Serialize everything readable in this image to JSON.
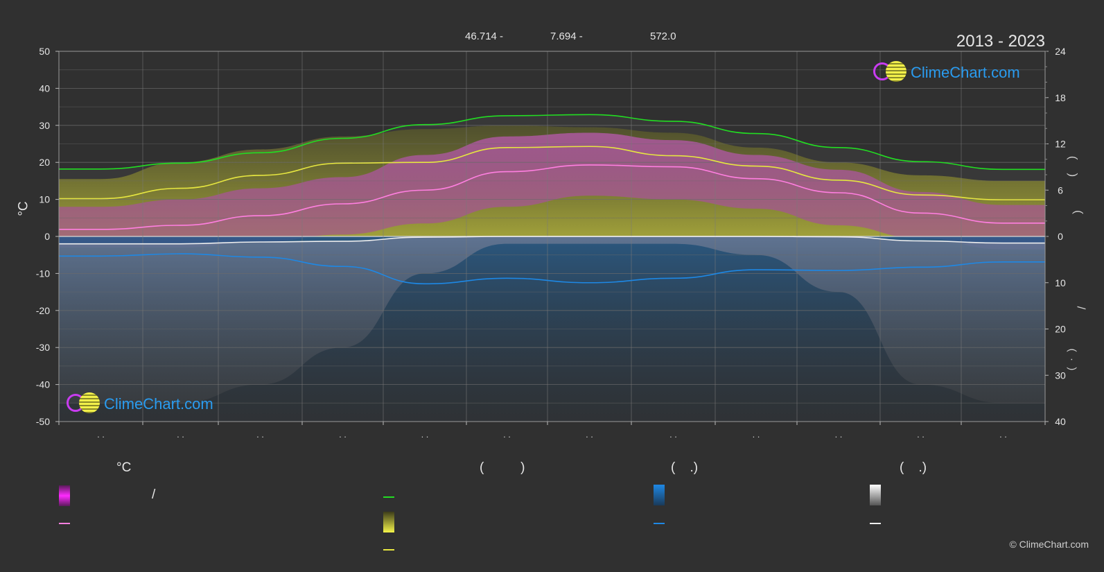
{
  "header": {
    "title": "2013 - 2023",
    "coords": [
      "46.714 -",
      "7.694 -",
      "572.0"
    ]
  },
  "logos": {
    "text": "ClimeChart.com"
  },
  "copyright": "© ClimeChart.com",
  "legend": {
    "temp_heading": "°C",
    "sun_heading": "(          )",
    "rain_heading": "(    .)",
    "snow_heading": "(    .)",
    "slash_label": "/"
  },
  "colors": {
    "background": "#303030",
    "daylight_line": "#22dd22",
    "sunshine_line": "#e6e640",
    "max_temp_line": "#ff7fe0",
    "rain_line": "#1e88e5",
    "snow_line": "#eeeeee"
  },
  "chart_data": {
    "type": "area",
    "months": 12,
    "x_tick_labels": [
      ". .",
      ". .",
      ". .",
      ". .",
      ". .",
      ". .",
      ". .",
      ". .",
      ". .",
      ". .",
      ". .",
      ". ."
    ],
    "y_left": {
      "label": "°C",
      "ticks": [
        50,
        40,
        30,
        20,
        10,
        0,
        -10,
        -20,
        -30,
        -40,
        -50
      ],
      "range": [
        -50,
        50
      ]
    },
    "y_right_top": {
      "ticks": [
        24,
        18,
        12,
        6,
        0
      ],
      "range": [
        0,
        24
      ]
    },
    "y_right_bottom": {
      "ticks": [
        0,
        10,
        20,
        30,
        40
      ],
      "range": [
        0,
        40
      ]
    },
    "right_label_glyphs": [
      "(    )",
      "(",
      "/",
      "(  ·  )"
    ],
    "series": [
      {
        "key": "daylight",
        "values": [
          18.2,
          19.8,
          22.6,
          26.5,
          30.2,
          32.6,
          32.9,
          31.1,
          27.8,
          24.0,
          20.2,
          18.1
        ]
      },
      {
        "key": "sunshine",
        "values": [
          10.2,
          13.0,
          16.5,
          19.8,
          20.0,
          24.0,
          24.3,
          21.8,
          19.0,
          15.2,
          11.2,
          9.9
        ]
      },
      {
        "key": "max_temp",
        "values": [
          1.9,
          3.0,
          5.6,
          8.8,
          12.5,
          17.5,
          19.3,
          18.8,
          15.6,
          11.8,
          6.3,
          3.6
        ]
      },
      {
        "key": "snow",
        "values": [
          -2.0,
          -2.0,
          -1.5,
          -1.3,
          -0.2,
          0,
          0,
          0,
          0,
          -0.1,
          -1.2,
          -1.8
        ]
      },
      {
        "key": "rain",
        "values": [
          -5.3,
          -4.7,
          -5.6,
          -8.1,
          -12.8,
          -11.3,
          -12.5,
          -11.3,
          -9.0,
          -9.2,
          -8.3,
          -6.9
        ]
      },
      {
        "key": "sunshine_band_top",
        "values": [
          15.5,
          20.0,
          23.5,
          27.0,
          29.0,
          30.0,
          29.5,
          28.0,
          24.0,
          20.0,
          16.5,
          15.0
        ]
      },
      {
        "key": "temp_band_top",
        "values": [
          8.0,
          10.0,
          13.0,
          16.0,
          22.0,
          27.0,
          28.0,
          26.0,
          22.0,
          18.0,
          12.0,
          8.5
        ]
      },
      {
        "key": "temp_band_bottom",
        "values": [
          -3.0,
          -3.0,
          -1.5,
          0.5,
          3.5,
          8.0,
          11.0,
          10.0,
          7.5,
          3.0,
          -0.5,
          -3.5
        ]
      }
    ],
    "grid": true
  }
}
